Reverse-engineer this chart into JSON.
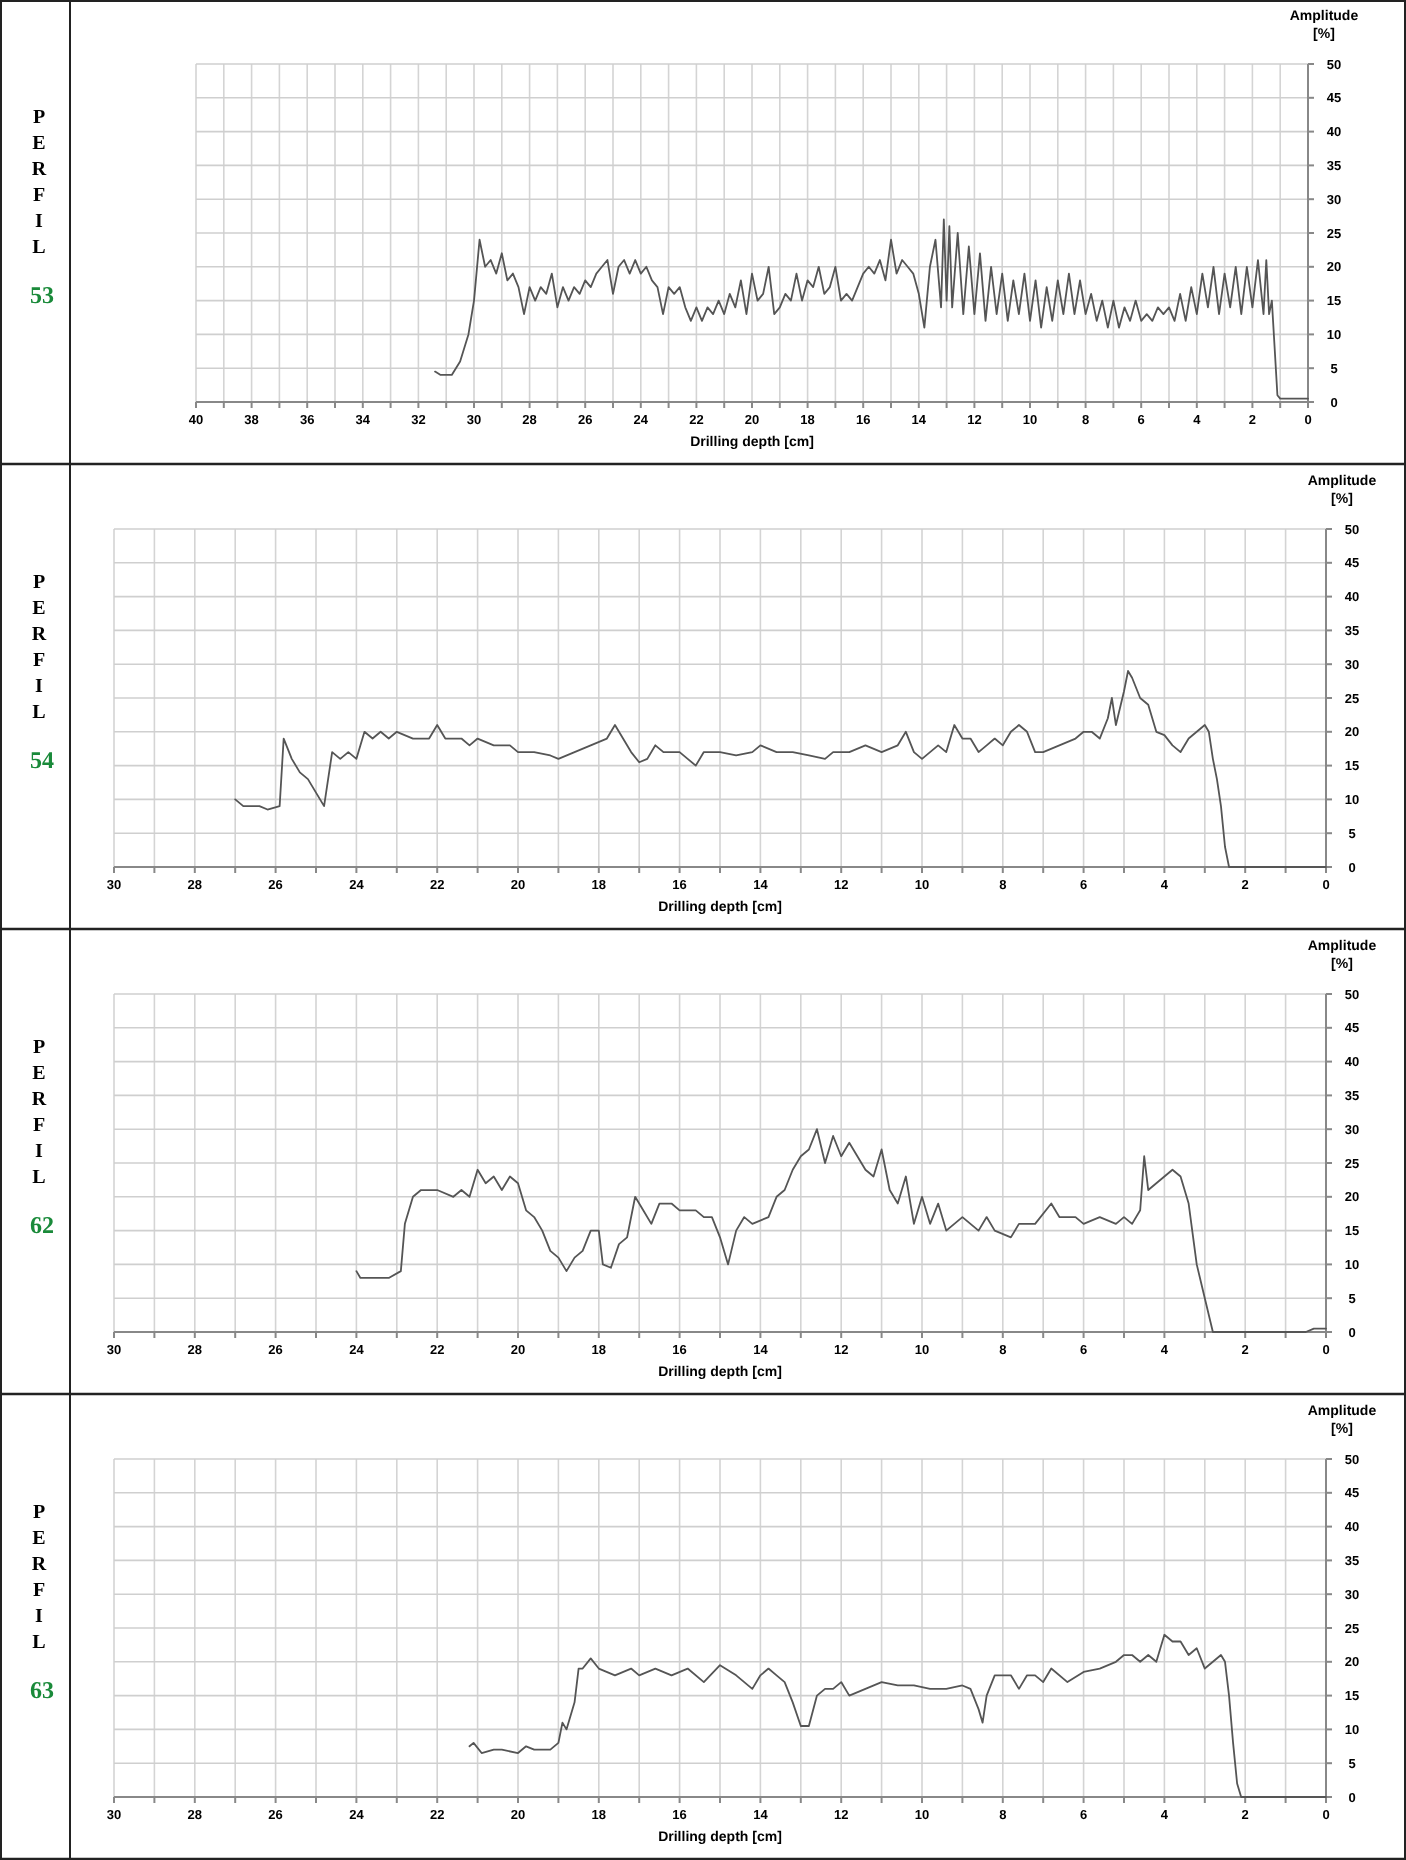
{
  "chart_data": [
    {
      "type": "line",
      "title": "PERFIL 53",
      "xlabel": "Drilling depth [cm]",
      "ylabel": "Amplitude [%]",
      "grid": true,
      "xlim": [
        40,
        0
      ],
      "ylim": [
        0,
        50
      ],
      "xticks": [
        40,
        {
          "value": 39,
          "label": null
        },
        38,
        {
          "value": 37,
          "label": null
        },
        36,
        {
          "value": 35,
          "label": null
        },
        34,
        {
          "value": 33,
          "label": null
        },
        32,
        {
          "value": 31,
          "label": null
        },
        30,
        {
          "value": 29,
          "label": null
        },
        28,
        {
          "value": 27,
          "label": null
        },
        26,
        {
          "value": 25,
          "label": null
        },
        24,
        {
          "value": 23,
          "label": null
        },
        22,
        {
          "value": 21,
          "label": null
        },
        20,
        {
          "value": 19,
          "label": null
        },
        18,
        {
          "value": 17,
          "label": null
        },
        16,
        {
          "value": 15,
          "label": null
        },
        14,
        {
          "value": 13,
          "label": null
        },
        12,
        {
          "value": 11,
          "label": null
        },
        10,
        {
          "value": 9,
          "label": null
        },
        8,
        {
          "value": 7,
          "label": null
        },
        6,
        {
          "value": 5,
          "label": null
        },
        4,
        {
          "value": 3,
          "label": null
        },
        2,
        {
          "value": 1,
          "label": null
        },
        0
      ],
      "yticks": [
        0,
        5,
        10,
        15,
        20,
        25,
        30,
        35,
        40,
        45,
        50
      ],
      "series": [
        {
          "color": "#555555",
          "x": [
            31.4,
            31.2,
            30.8,
            30.5,
            30.2,
            30.0,
            29.8,
            29.6,
            29.4,
            29.2,
            29.0,
            28.8,
            28.6,
            28.4,
            28.2,
            28.0,
            27.8,
            27.6,
            27.4,
            27.2,
            27.0,
            26.8,
            26.6,
            26.4,
            26.2,
            26.0,
            25.8,
            25.6,
            25.4,
            25.2,
            25.0,
            24.8,
            24.6,
            24.4,
            24.2,
            24.0,
            23.8,
            23.6,
            23.4,
            23.2,
            23.0,
            22.8,
            22.6,
            22.4,
            22.2,
            22.0,
            21.8,
            21.6,
            21.4,
            21.2,
            21.0,
            20.8,
            20.6,
            20.4,
            20.2,
            20.0,
            19.8,
            19.6,
            19.4,
            19.2,
            19.0,
            18.8,
            18.6,
            18.4,
            18.2,
            18.0,
            17.8,
            17.6,
            17.4,
            17.2,
            17.0,
            16.8,
            16.6,
            16.4,
            16.2,
            16.0,
            15.8,
            15.6,
            15.4,
            15.2,
            15.0,
            14.8,
            14.6,
            14.4,
            14.2,
            14.0,
            13.8,
            13.6,
            13.4,
            13.2,
            13.1,
            13.0,
            12.9,
            12.8,
            12.6,
            12.4,
            12.2,
            12.0,
            11.8,
            11.6,
            11.4,
            11.2,
            11.0,
            10.8,
            10.6,
            10.4,
            10.2,
            10.0,
            9.8,
            9.6,
            9.4,
            9.2,
            9.0,
            8.8,
            8.6,
            8.4,
            8.2,
            8.0,
            7.8,
            7.6,
            7.4,
            7.2,
            7.0,
            6.8,
            6.6,
            6.4,
            6.2,
            6.0,
            5.8,
            5.6,
            5.4,
            5.2,
            5.0,
            4.8,
            4.6,
            4.4,
            4.2,
            4.0,
            3.8,
            3.6,
            3.4,
            3.2,
            3.0,
            2.8,
            2.6,
            2.4,
            2.2,
            2.0,
            1.8,
            1.6,
            1.5,
            1.4,
            1.3,
            1.1,
            1.0,
            0
          ],
          "values": [
            4.5,
            4,
            4,
            6,
            10,
            15,
            24,
            20,
            21,
            19,
            22,
            18,
            19,
            17,
            13,
            17,
            15,
            17,
            16,
            19,
            14,
            17,
            15,
            17,
            16,
            18,
            17,
            19,
            20,
            21,
            16,
            20,
            21,
            19,
            21,
            19,
            20,
            18,
            17,
            13,
            17,
            16,
            17,
            14,
            12,
            14,
            12,
            14,
            13,
            15,
            13,
            16,
            14,
            18,
            13,
            19,
            15,
            16,
            20,
            13,
            14,
            16,
            15,
            19,
            15,
            18,
            17,
            20,
            16,
            17,
            20,
            15,
            16,
            15,
            17,
            19,
            20,
            19,
            21,
            18,
            24,
            19,
            21,
            20,
            19,
            16,
            11,
            20,
            24,
            14,
            27,
            15,
            26,
            14,
            25,
            13,
            23,
            13,
            22,
            12,
            20,
            13,
            19,
            12,
            18,
            13,
            19,
            12,
            18,
            11,
            17,
            12,
            18,
            13,
            19,
            13,
            18,
            13,
            16,
            12,
            15,
            11,
            15,
            11,
            14,
            12,
            15,
            12,
            13,
            12,
            14,
            13,
            14,
            12,
            16,
            12,
            17,
            13,
            19,
            14,
            20,
            13,
            19,
            14,
            20,
            13,
            20,
            14,
            21,
            13,
            21,
            13,
            15,
            1,
            0.5,
            0.5
          ]
        }
      ]
    },
    {
      "type": "line",
      "title": "PERFIL 54",
      "xlabel": "Drilling depth [cm]",
      "ylabel": "Amplitude [%]",
      "grid": true,
      "xlim": [
        30,
        0
      ],
      "ylim": [
        0,
        50
      ],
      "xticks": [
        30,
        {
          "value": 29,
          "label": null
        },
        28,
        {
          "value": 27,
          "label": null
        },
        26,
        {
          "value": 25,
          "label": null
        },
        24,
        {
          "value": 23,
          "label": null
        },
        22,
        {
          "value": 21,
          "label": null
        },
        20,
        {
          "value": 19,
          "label": null
        },
        18,
        {
          "value": 17,
          "label": null
        },
        16,
        {
          "value": 15,
          "label": null
        },
        14,
        {
          "value": 13,
          "label": null
        },
        12,
        {
          "value": 11,
          "label": null
        },
        10,
        {
          "value": 9,
          "label": null
        },
        8,
        {
          "value": 7,
          "label": null
        },
        6,
        {
          "value": 5,
          "label": null
        },
        4,
        {
          "value": 3,
          "label": null
        },
        2,
        {
          "value": 1,
          "label": null
        },
        0
      ],
      "yticks": [
        0,
        5,
        10,
        15,
        20,
        25,
        30,
        35,
        40,
        45,
        50
      ],
      "series": [
        {
          "color": "#555555",
          "x": [
            27,
            26.8,
            26.4,
            26.2,
            25.9,
            25.8,
            25.6,
            25.4,
            25.2,
            25.0,
            24.8,
            24.6,
            24.4,
            24.2,
            24.0,
            23.8,
            23.6,
            23.4,
            23.2,
            23.0,
            22.6,
            22.2,
            22.0,
            21.8,
            21.4,
            21.2,
            21.0,
            20.6,
            20.2,
            20.0,
            19.6,
            19.2,
            19.0,
            18.6,
            18.2,
            17.8,
            17.6,
            17.4,
            17.2,
            17.0,
            16.8,
            16.6,
            16.4,
            16.0,
            15.8,
            15.6,
            15.4,
            15.0,
            14.6,
            14.2,
            14.0,
            13.6,
            13.2,
            12.8,
            12.4,
            12.2,
            11.8,
            11.4,
            11.0,
            10.6,
            10.4,
            10.2,
            10.0,
            9.6,
            9.4,
            9.2,
            9.0,
            8.8,
            8.6,
            8.4,
            8.2,
            8.0,
            7.8,
            7.6,
            7.4,
            7.2,
            7.0,
            6.6,
            6.2,
            6.0,
            5.8,
            5.6,
            5.4,
            5.3,
            5.2,
            5.0,
            4.9,
            4.8,
            4.6,
            4.4,
            4.2,
            4.0,
            3.8,
            3.6,
            3.4,
            3.2,
            3.0,
            2.9,
            2.8,
            2.7,
            2.6,
            2.5,
            2.4,
            0
          ],
          "values": [
            10,
            9,
            9,
            8.5,
            9,
            19,
            16,
            14,
            13,
            11,
            9,
            17,
            16,
            17,
            16,
            20,
            19,
            20,
            19,
            20,
            19,
            19,
            21,
            19,
            19,
            18,
            19,
            18,
            18,
            17,
            17,
            16.5,
            16,
            17,
            18,
            19,
            21,
            19,
            17,
            15.5,
            16,
            18,
            17,
            17,
            16,
            15,
            17,
            17,
            16.5,
            17,
            18,
            17,
            17,
            16.5,
            16,
            17,
            17,
            18,
            17,
            18,
            20,
            17,
            16,
            18,
            17,
            21,
            19,
            19,
            17,
            18,
            19,
            18,
            20,
            21,
            20,
            17,
            17,
            18,
            19,
            20,
            20,
            19,
            22,
            25,
            21,
            26,
            29,
            28,
            25,
            24,
            20,
            19.5,
            18,
            17,
            19,
            20,
            21,
            20,
            16,
            13,
            9,
            3,
            0,
            0
          ]
        }
      ]
    },
    {
      "type": "line",
      "title": "PERFIL 62",
      "xlabel": "Drilling depth [cm]",
      "ylabel": "Amplitude [%]",
      "grid": true,
      "xlim": [
        30,
        0
      ],
      "ylim": [
        0,
        50
      ],
      "xticks": [
        30,
        {
          "value": 29,
          "label": null
        },
        28,
        {
          "value": 27,
          "label": null
        },
        26,
        {
          "value": 25,
          "label": null
        },
        24,
        {
          "value": 23,
          "label": null
        },
        22,
        {
          "value": 21,
          "label": null
        },
        20,
        {
          "value": 19,
          "label": null
        },
        18,
        {
          "value": 17,
          "label": null
        },
        16,
        {
          "value": 15,
          "label": null
        },
        14,
        {
          "value": 13,
          "label": null
        },
        12,
        {
          "value": 11,
          "label": null
        },
        10,
        {
          "value": 9,
          "label": null
        },
        8,
        {
          "value": 7,
          "label": null
        },
        6,
        {
          "value": 5,
          "label": null
        },
        4,
        {
          "value": 3,
          "label": null
        },
        2,
        {
          "value": 1,
          "label": null
        },
        0
      ],
      "yticks": [
        0,
        5,
        10,
        15,
        20,
        25,
        30,
        35,
        40,
        45,
        50
      ],
      "series": [
        {
          "color": "#555555",
          "x": [
            24.0,
            23.9,
            23.2,
            22.9,
            22.8,
            22.6,
            22.4,
            22.0,
            21.6,
            21.4,
            21.2,
            21.0,
            20.8,
            20.6,
            20.4,
            20.2,
            20.0,
            19.8,
            19.6,
            19.4,
            19.2,
            19.0,
            18.8,
            18.6,
            18.4,
            18.2,
            18.0,
            17.9,
            17.7,
            17.5,
            17.3,
            17.1,
            16.9,
            16.7,
            16.5,
            16.2,
            16.0,
            15.6,
            15.4,
            15.2,
            15.0,
            14.8,
            14.6,
            14.4,
            14.2,
            13.8,
            13.6,
            13.4,
            13.2,
            13.0,
            12.8,
            12.6,
            12.4,
            12.2,
            12.0,
            11.8,
            11.6,
            11.4,
            11.2,
            11.0,
            10.8,
            10.6,
            10.4,
            10.2,
            10.0,
            9.8,
            9.6,
            9.4,
            9.2,
            9.0,
            8.6,
            8.4,
            8.2,
            7.8,
            7.6,
            7.2,
            6.8,
            6.6,
            6.2,
            6.0,
            5.6,
            5.2,
            5.0,
            4.8,
            4.6,
            4.5,
            4.4,
            4.2,
            4.0,
            3.8,
            3.6,
            3.4,
            3.2,
            3.0,
            2.8,
            0.5,
            0.3,
            0
          ],
          "values": [
            9,
            8,
            8,
            9,
            16,
            20,
            21,
            21,
            20,
            21,
            20,
            24,
            22,
            23,
            21,
            23,
            22,
            18,
            17,
            15,
            12,
            11,
            9,
            11,
            12,
            15,
            15,
            10,
            9.5,
            13,
            14,
            20,
            18,
            16,
            19,
            19,
            18,
            18,
            17,
            17,
            14,
            10,
            15,
            17,
            16,
            17,
            20,
            21,
            24,
            26,
            27,
            30,
            25,
            29,
            26,
            28,
            26,
            24,
            23,
            27,
            21,
            19,
            23,
            16,
            20,
            16,
            19,
            15,
            16,
            17,
            15,
            17,
            15,
            14,
            16,
            16,
            19,
            17,
            17,
            16,
            17,
            16,
            17,
            16,
            18,
            26,
            21,
            22,
            23,
            24,
            23,
            19,
            10,
            5,
            0,
            0,
            0.5,
            0.5
          ]
        }
      ]
    },
    {
      "type": "line",
      "title": "PERFIL 63",
      "xlabel": "Drilling depth [cm]",
      "ylabel": "Amplitude [%]",
      "grid": true,
      "xlim": [
        30,
        0
      ],
      "ylim": [
        0,
        50
      ],
      "xticks": [
        30,
        {
          "value": 29,
          "label": null
        },
        28,
        {
          "value": 27,
          "label": null
        },
        26,
        {
          "value": 25,
          "label": null
        },
        24,
        {
          "value": 23,
          "label": null
        },
        22,
        {
          "value": 21,
          "label": null
        },
        20,
        {
          "value": 19,
          "label": null
        },
        18,
        {
          "value": 17,
          "label": null
        },
        16,
        {
          "value": 15,
          "label": null
        },
        14,
        {
          "value": 13,
          "label": null
        },
        12,
        {
          "value": 11,
          "label": null
        },
        10,
        {
          "value": 9,
          "label": null
        },
        8,
        {
          "value": 7,
          "label": null
        },
        6,
        {
          "value": 5,
          "label": null
        },
        4,
        {
          "value": 3,
          "label": null
        },
        2,
        {
          "value": 1,
          "label": null
        },
        0
      ],
      "yticks": [
        0,
        5,
        10,
        15,
        20,
        25,
        30,
        35,
        40,
        45,
        50
      ],
      "series": [
        {
          "color": "#555555",
          "x": [
            21.2,
            21.1,
            20.9,
            20.6,
            20.4,
            20.0,
            19.8,
            19.6,
            19.2,
            19.0,
            18.9,
            18.8,
            18.6,
            18.5,
            18.4,
            18.2,
            18.0,
            17.6,
            17.2,
            17.0,
            16.6,
            16.2,
            15.8,
            15.4,
            15.0,
            14.6,
            14.2,
            14.0,
            13.8,
            13.6,
            13.4,
            13.2,
            13.0,
            12.8,
            12.6,
            12.4,
            12.2,
            12.0,
            11.8,
            11.4,
            11.0,
            10.6,
            10.2,
            9.8,
            9.4,
            9.0,
            8.8,
            8.6,
            8.5,
            8.4,
            8.2,
            7.8,
            7.6,
            7.4,
            7.2,
            7.0,
            6.8,
            6.4,
            6.0,
            5.6,
            5.2,
            5.0,
            4.8,
            4.6,
            4.4,
            4.2,
            4.0,
            3.8,
            3.6,
            3.4,
            3.2,
            3.0,
            2.8,
            2.6,
            2.5,
            2.4,
            2.3,
            2.2,
            2.1,
            0
          ],
          "values": [
            7.5,
            8,
            6.5,
            7,
            7,
            6.5,
            7.5,
            7,
            7,
            8,
            11,
            10,
            14,
            19,
            19,
            20.5,
            19,
            18,
            19,
            18,
            19,
            18,
            19,
            17,
            19.5,
            18,
            16,
            18,
            19,
            18,
            17,
            14,
            10.5,
            10.5,
            15,
            16,
            16,
            17,
            15,
            16,
            17,
            16.5,
            16.5,
            16,
            16,
            16.5,
            16,
            13,
            11,
            15,
            18,
            18,
            16,
            18,
            18,
            17,
            19,
            17,
            18.5,
            19,
            20,
            21,
            21,
            20,
            21,
            20,
            24,
            23,
            23,
            21,
            22,
            19,
            20,
            21,
            20,
            15,
            8,
            2,
            0,
            0
          ]
        }
      ]
    }
  ]
}
